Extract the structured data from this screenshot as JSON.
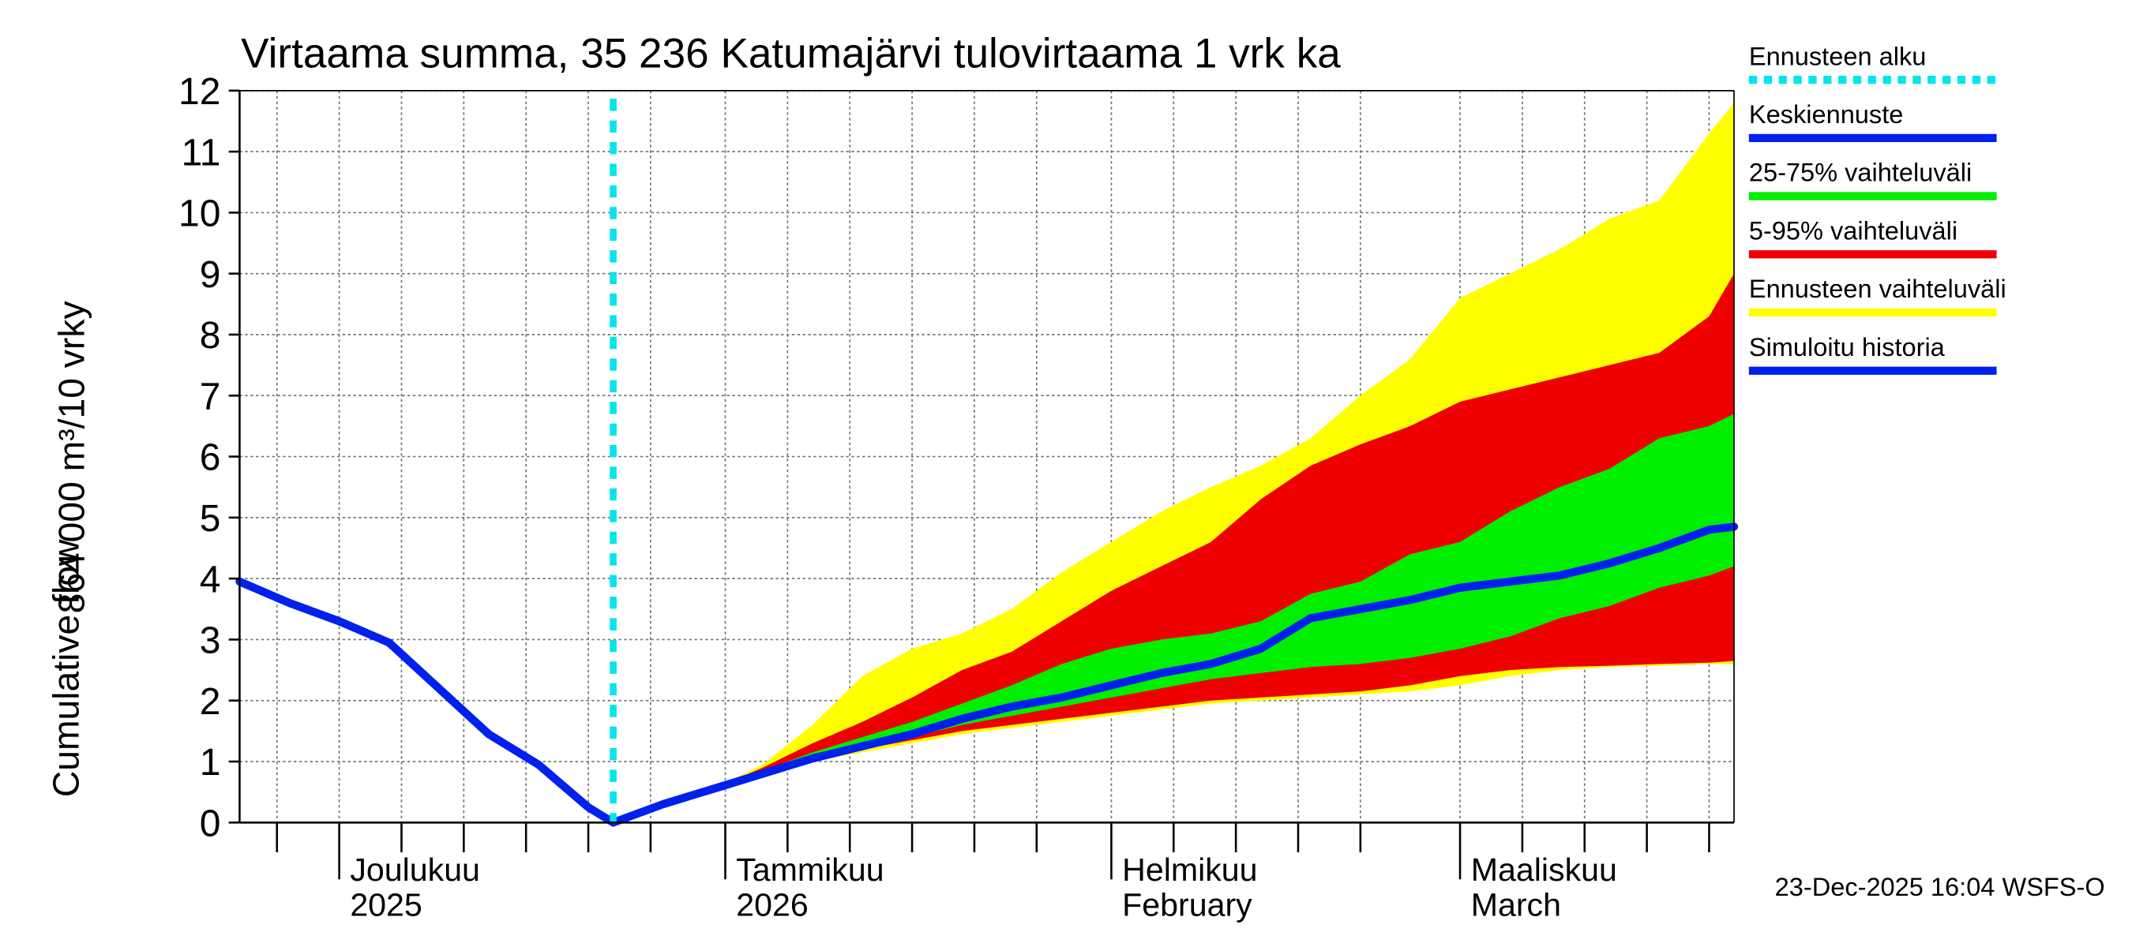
{
  "chart_data": {
    "type": "area",
    "title": "Virtaama summa, 35 236 Katumajärvi tulovirtaama 1 vrk ka",
    "ylabel": [
      "864 000 m³/10 vrky",
      "Cumulative flow"
    ],
    "timestamp": "23-Dec-2025 16:04 WSFS-O",
    "x": [
      0,
      4,
      8,
      12,
      16,
      20,
      24,
      28,
      30,
      34,
      38,
      42,
      46,
      50,
      54,
      58,
      62,
      66,
      70,
      74,
      78,
      82,
      86,
      90,
      94,
      98,
      102,
      106,
      110,
      114,
      118,
      120
    ],
    "xlim": [
      0,
      120
    ],
    "xticks": [
      {
        "value": 8,
        "label": [
          "Joulukuu",
          "2025"
        ]
      },
      {
        "value": 39,
        "label": [
          "Tammikuu",
          "2026"
        ]
      },
      {
        "value": 70,
        "label": [
          "Helmikuu",
          "February"
        ]
      },
      {
        "value": 98,
        "label": [
          "Maaliskuu",
          "March"
        ]
      }
    ],
    "xgrid": [
      3,
      13,
      18,
      23,
      28,
      33,
      44,
      49,
      54,
      59,
      64,
      75,
      80,
      85,
      90,
      103,
      108,
      113,
      118
    ],
    "ylim": [
      0,
      12
    ],
    "yticks": [
      0,
      1,
      2,
      3,
      4,
      5,
      6,
      7,
      8,
      9,
      10,
      11,
      12
    ],
    "grid": true,
    "series": [
      {
        "name": "Ennusteen alku",
        "kind": "vline",
        "color": "#00e5ee",
        "value": 30
      },
      {
        "name": "Keskiennuste",
        "kind": "line",
        "color": "#0020ee",
        "values": [
          null,
          null,
          null,
          null,
          null,
          null,
          null,
          null,
          0,
          0.3,
          0.55,
          0.8,
          1.05,
          1.25,
          1.45,
          1.7,
          1.9,
          2.05,
          2.25,
          2.45,
          2.6,
          2.85,
          3.35,
          3.5,
          3.65,
          3.85,
          3.95,
          4.05,
          4.25,
          4.5,
          4.8,
          4.85
        ]
      },
      {
        "name": "25-75% vaihteluväli",
        "kind": "band",
        "color": "#00ee00",
        "lower": [
          null,
          null,
          null,
          null,
          null,
          null,
          null,
          null,
          0,
          0.3,
          0.55,
          0.8,
          1.1,
          1.25,
          1.4,
          1.6,
          1.75,
          1.9,
          2.05,
          2.2,
          2.35,
          2.45,
          2.55,
          2.6,
          2.7,
          2.85,
          3.05,
          3.35,
          3.55,
          3.85,
          4.05,
          4.2
        ],
        "upper": [
          null,
          null,
          null,
          null,
          null,
          null,
          null,
          null,
          0,
          0.3,
          0.55,
          0.85,
          1.15,
          1.4,
          1.65,
          1.95,
          2.25,
          2.6,
          2.85,
          3.0,
          3.1,
          3.3,
          3.75,
          3.95,
          4.4,
          4.6,
          5.1,
          5.5,
          5.8,
          6.3,
          6.5,
          6.7
        ]
      },
      {
        "name": "5-95% vaihteluväli",
        "kind": "band",
        "color": "#ee0000",
        "lower": [
          null,
          null,
          null,
          null,
          null,
          null,
          null,
          null,
          0,
          0.3,
          0.55,
          0.8,
          1.05,
          1.2,
          1.35,
          1.5,
          1.6,
          1.7,
          1.8,
          1.9,
          2.0,
          2.05,
          2.1,
          2.15,
          2.25,
          2.4,
          2.5,
          2.55,
          2.57,
          2.6,
          2.62,
          2.65
        ],
        "upper": [
          null,
          null,
          null,
          null,
          null,
          null,
          null,
          null,
          0,
          0.3,
          0.55,
          0.9,
          1.3,
          1.65,
          2.05,
          2.5,
          2.8,
          3.3,
          3.8,
          4.2,
          4.6,
          5.3,
          5.85,
          6.2,
          6.5,
          6.9,
          7.1,
          7.3,
          7.5,
          7.7,
          8.3,
          9.0
        ]
      },
      {
        "name": "Ennusteen vaihteluväli",
        "kind": "band",
        "color": "#ffff00",
        "lower": [
          null,
          null,
          null,
          null,
          null,
          null,
          null,
          null,
          0,
          0.3,
          0.55,
          0.8,
          1.0,
          1.15,
          1.3,
          1.45,
          1.55,
          1.65,
          1.75,
          1.85,
          1.95,
          2.0,
          2.05,
          2.1,
          2.15,
          2.25,
          2.4,
          2.5,
          2.55,
          2.57,
          2.6,
          2.6
        ],
        "upper": [
          null,
          null,
          null,
          null,
          null,
          null,
          null,
          null,
          0,
          0.3,
          0.55,
          0.95,
          1.6,
          2.4,
          2.85,
          3.1,
          3.5,
          4.1,
          4.6,
          5.1,
          5.5,
          5.85,
          6.3,
          7.0,
          7.6,
          8.6,
          9.0,
          9.4,
          9.9,
          10.2,
          11.3,
          11.8
        ]
      },
      {
        "name": "Simuloitu historia",
        "kind": "line",
        "color": "#0020ee",
        "values": [
          3.95,
          3.6,
          3.3,
          2.95,
          2.2,
          1.45,
          0.95,
          0.25,
          0,
          null,
          null,
          null,
          null,
          null,
          null,
          null,
          null,
          null,
          null,
          null,
          null,
          null,
          null,
          null,
          null,
          null,
          null,
          null,
          null,
          null,
          null,
          null
        ]
      }
    ]
  }
}
